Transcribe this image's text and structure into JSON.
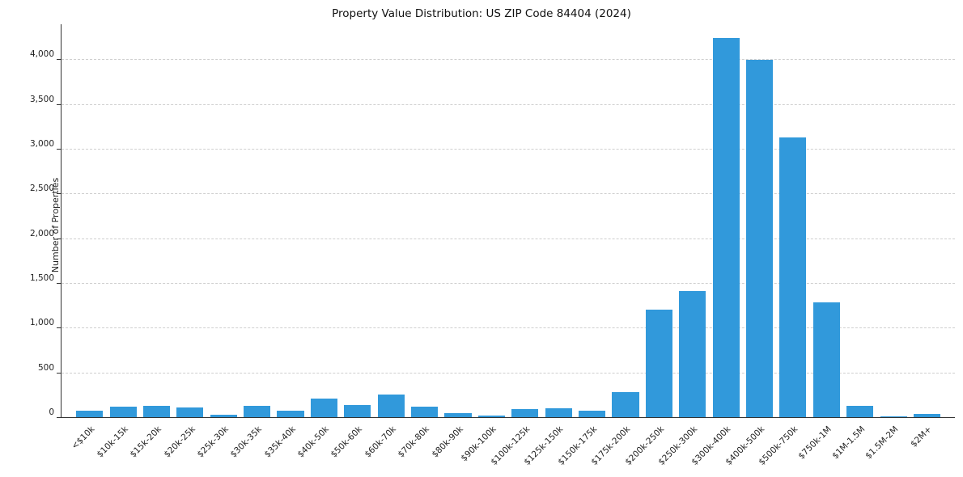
{
  "chart_data": {
    "type": "bar",
    "title": "Property Value Distribution: US ZIP Code 84404 (2024)",
    "xlabel": "",
    "ylabel": "Number of Properties",
    "ylim": [
      0,
      4400
    ],
    "y_ticks": [
      0,
      500,
      1000,
      1500,
      2000,
      2500,
      3000,
      3500,
      4000
    ],
    "grid": "horizontal-dashed",
    "bar_color": "#3199db",
    "categories": [
      "<$10k",
      "$10k-15k",
      "$15k-20k",
      "$20k-25k",
      "$25k-30k",
      "$30k-35k",
      "$35k-40k",
      "$40k-50k",
      "$50k-60k",
      "$60k-70k",
      "$70k-80k",
      "$80k-90k",
      "$90k-100k",
      "$100k-125k",
      "$125k-150k",
      "$150k-175k",
      "$175k-200k",
      "$200k-250k",
      "$250k-300k",
      "$300k-400k",
      "$400k-500k",
      "$500k-750k",
      "$750k-1M",
      "$1M-1.5M",
      "$1.5M-2M",
      "$2M+"
    ],
    "values": [
      70,
      115,
      125,
      110,
      30,
      130,
      70,
      210,
      140,
      250,
      120,
      45,
      20,
      90,
      100,
      70,
      280,
      1200,
      1410,
      4250,
      4000,
      3130,
      1290,
      130,
      10,
      40
    ]
  }
}
